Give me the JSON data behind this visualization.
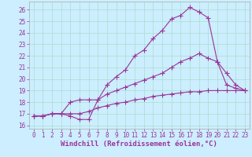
{
  "xlabel": "Windchill (Refroidissement éolien,°C)",
  "bg_color": "#cceeff",
  "line_color": "#993399",
  "x_ticks": [
    0,
    1,
    2,
    3,
    4,
    5,
    6,
    7,
    8,
    9,
    10,
    11,
    12,
    13,
    14,
    15,
    16,
    17,
    18,
    19,
    20,
    21,
    22,
    23
  ],
  "y_ticks": [
    16,
    17,
    18,
    19,
    20,
    21,
    22,
    23,
    24,
    25,
    26
  ],
  "ylim": [
    15.7,
    26.7
  ],
  "xlim": [
    -0.5,
    23.5
  ],
  "line1_y": [
    16.8,
    16.8,
    17.0,
    17.0,
    16.8,
    16.5,
    16.5,
    18.2,
    19.5,
    20.2,
    20.8,
    22.0,
    22.5,
    23.5,
    24.2,
    25.2,
    25.5,
    26.2,
    25.8,
    25.3,
    21.5,
    19.5,
    19.2,
    19.0
  ],
  "line2_y": [
    16.8,
    16.8,
    17.0,
    17.0,
    18.0,
    18.2,
    18.2,
    18.2,
    18.7,
    19.0,
    19.3,
    19.6,
    19.9,
    20.2,
    20.5,
    21.0,
    21.5,
    21.8,
    22.2,
    21.8,
    21.5,
    20.5,
    19.5,
    19.0
  ],
  "line3_y": [
    16.8,
    16.8,
    17.0,
    17.0,
    17.0,
    17.0,
    17.2,
    17.5,
    17.7,
    17.9,
    18.0,
    18.2,
    18.3,
    18.5,
    18.6,
    18.7,
    18.8,
    18.9,
    18.9,
    19.0,
    19.0,
    19.0,
    19.0,
    19.0
  ],
  "marker": "+",
  "markersize": 4,
  "linewidth": 0.8,
  "grid_color": "#aaddcc",
  "tick_fontsize": 5.5,
  "xlabel_fontsize": 6.5,
  "tick_color": "#993399",
  "xlabel_color": "#993399"
}
